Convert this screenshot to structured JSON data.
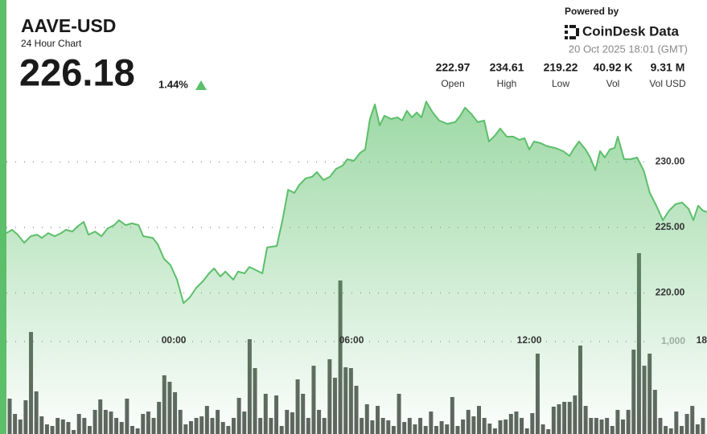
{
  "header": {
    "title": "AAVE-USD",
    "subtitle": "24 Hour Chart",
    "price": "226.18",
    "change": "1.44%",
    "powered_by": "Powered by",
    "brand": "CoinDesk Data",
    "timestamp": "20 Oct 2025 18:01 (GMT)",
    "stats": [
      {
        "value": "222.97",
        "label": "Open"
      },
      {
        "value": "234.61",
        "label": "High"
      },
      {
        "value": "219.22",
        "label": "Low"
      },
      {
        "value": "40.92 K",
        "label": "Vol"
      },
      {
        "value": "9.31 M",
        "label": "Vol USD"
      }
    ]
  },
  "chart_data": [
    {
      "type": "area",
      "color": "#5cbf6a",
      "grid": true,
      "x": [
        -5.65,
        -5.46,
        -5.27,
        -5.05,
        -4.83,
        -4.62,
        -4.45,
        -4.24,
        -4.02,
        -3.8,
        -3.64,
        -3.42,
        -3.26,
        -3.04,
        -2.88,
        -2.66,
        -2.44,
        -2.23,
        -2.01,
        -1.85,
        -1.63,
        -1.41,
        -1.19,
        -1.03,
        -0.71,
        -0.54,
        -0.33,
        -0.11,
        0.11,
        0.33,
        0.54,
        0.76,
        0.98,
        1.19,
        1.36,
        1.57,
        1.74,
        2.01,
        2.17,
        2.39,
        2.55,
        2.77,
        2.99,
        3.15,
        3.48,
        3.69,
        3.86,
        4.07,
        4.24,
        4.45,
        4.67,
        4.83,
        5.05,
        5.27,
        5.48,
        5.7,
        5.86,
        6.08,
        6.3,
        6.46,
        6.62,
        6.79,
        6.95,
        7.11,
        7.33,
        7.55,
        7.71,
        7.87,
        8.04,
        8.2,
        8.36,
        8.52,
        8.74,
        8.96,
        9.23,
        9.5,
        9.67,
        9.83,
        10.05,
        10.26,
        10.48,
        10.64,
        10.86,
        11.02,
        11.24,
        11.46,
        11.67,
        11.84,
        12.0,
        12.16,
        12.38,
        12.6,
        12.87,
        13.14,
        13.36,
        13.52,
        13.68,
        13.9,
        14.06,
        14.23,
        14.39,
        14.55,
        14.72,
        14.88,
        14.99,
        15.2,
        15.42,
        15.64,
        15.86,
        16.07,
        16.29,
        16.51,
        16.72,
        16.94,
        17.16,
        17.38,
        17.54,
        17.7,
        17.86,
        18.0
      ],
      "values": [
        224.57,
        224.82,
        224.45,
        223.83,
        224.33,
        224.45,
        224.2,
        224.57,
        224.33,
        224.57,
        224.82,
        224.69,
        225.06,
        225.43,
        224.45,
        224.69,
        224.33,
        224.94,
        225.18,
        225.55,
        225.18,
        225.31,
        225.18,
        224.33,
        224.2,
        223.71,
        222.61,
        222.12,
        221.01,
        219.22,
        219.66,
        220.4,
        220.89,
        221.5,
        221.87,
        221.26,
        221.63,
        221.01,
        221.63,
        221.5,
        221.99,
        221.75,
        221.5,
        223.47,
        223.59,
        225.8,
        227.88,
        227.64,
        228.25,
        228.74,
        228.87,
        229.23,
        228.62,
        228.87,
        229.48,
        229.72,
        230.21,
        230.09,
        230.71,
        230.95,
        233.28,
        234.39,
        232.79,
        233.53,
        233.28,
        233.4,
        233.16,
        233.9,
        233.4,
        233.77,
        233.4,
        234.61,
        233.77,
        233.16,
        232.91,
        233.04,
        233.53,
        234.14,
        233.65,
        233.04,
        233.16,
        231.56,
        232.06,
        232.55,
        231.93,
        231.93,
        231.69,
        231.81,
        230.95,
        231.56,
        231.44,
        231.2,
        231.07,
        230.83,
        230.46,
        231.07,
        231.56,
        230.95,
        230.34,
        229.36,
        230.83,
        230.34,
        230.95,
        231.07,
        231.93,
        230.21,
        230.21,
        230.34,
        229.36,
        227.64,
        226.66,
        225.55,
        226.29,
        226.78,
        226.9,
        226.41,
        225.55,
        226.66,
        226.29,
        226.18
      ],
      "xlim": [
        -5.65,
        18.0
      ],
      "xticks": [
        {
          "value": 0,
          "label": "00:00"
        },
        {
          "value": 6,
          "label": "06:00"
        },
        {
          "value": 12,
          "label": "12:00"
        },
        {
          "value": 18,
          "label": "18"
        }
      ],
      "ylim": [
        215,
        235
      ],
      "yticks": [
        {
          "value": 220,
          "label": "220.00"
        },
        {
          "value": 225,
          "label": "225.00"
        },
        {
          "value": 230,
          "label": "230.00"
        }
      ]
    },
    {
      "type": "bar",
      "color": "#5d635d",
      "values": [
        383,
        217,
        157,
        365,
        1104,
        461,
        191,
        104,
        87,
        174,
        157,
        130,
        43,
        217,
        174,
        87,
        261,
        374,
        261,
        243,
        174,
        130,
        383,
        87,
        61,
        217,
        243,
        174,
        348,
        635,
        565,
        452,
        261,
        104,
        139,
        174,
        191,
        304,
        174,
        261,
        130,
        87,
        174,
        391,
        243,
        1026,
        713,
        174,
        435,
        174,
        417,
        87,
        261,
        235,
        591,
        435,
        174,
        739,
        261,
        174,
        809,
        609,
        1661,
        722,
        713,
        522,
        174,
        322,
        148,
        304,
        174,
        148,
        87,
        435,
        130,
        174,
        104,
        174,
        87,
        243,
        87,
        139,
        104,
        400,
        87,
        157,
        261,
        191,
        304,
        174,
        113,
        61,
        148,
        157,
        217,
        243,
        174,
        61,
        226,
        870,
        104,
        52,
        296,
        322,
        348,
        348,
        417,
        957,
        304,
        174,
        174,
        157,
        174,
        87,
        261,
        157,
        261,
        913,
        1957,
        739,
        870,
        478,
        174,
        87,
        61,
        243,
        87,
        217,
        304,
        104,
        174
      ],
      "ylim": [
        0,
        2000
      ],
      "yticks": [
        {
          "value": 1000,
          "label": "1,000"
        }
      ]
    }
  ]
}
